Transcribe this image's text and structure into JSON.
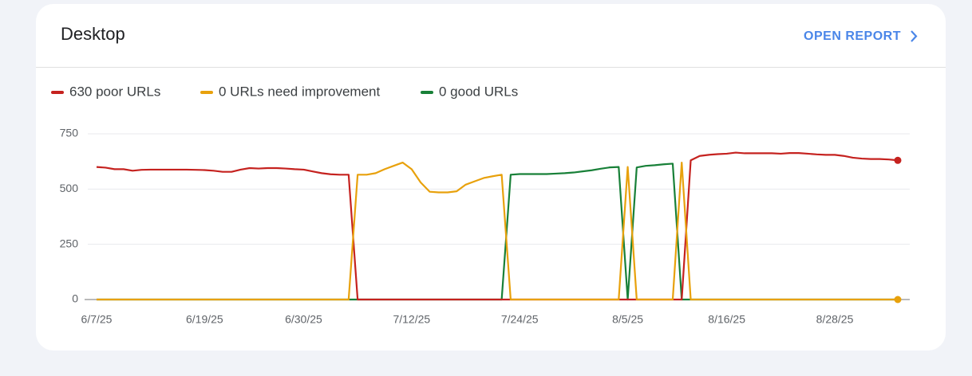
{
  "header": {
    "title": "Desktop",
    "link": "OPEN REPORT"
  },
  "chart_data": {
    "type": "line",
    "categories": [
      "6/7/25",
      null,
      null,
      null,
      null,
      null,
      null,
      null,
      null,
      null,
      null,
      null,
      "6/19/25",
      null,
      null,
      null,
      null,
      null,
      null,
      null,
      null,
      null,
      null,
      "6/30/25",
      null,
      null,
      null,
      null,
      null,
      null,
      null,
      null,
      null,
      null,
      null,
      "7/12/25",
      null,
      null,
      null,
      null,
      null,
      null,
      null,
      null,
      null,
      null,
      null,
      "7/24/25",
      null,
      null,
      null,
      null,
      null,
      null,
      null,
      null,
      null,
      null,
      null,
      "8/5/25",
      null,
      null,
      null,
      null,
      null,
      null,
      null,
      null,
      null,
      null,
      "8/16/25",
      null,
      null,
      null,
      null,
      null,
      null,
      null,
      null,
      null,
      null,
      null,
      "8/28/25",
      null,
      null,
      null,
      null,
      null,
      null,
      null
    ],
    "series": [
      {
        "name": "0 good URLs",
        "color": "#188038",
        "values": [
          0,
          0,
          0,
          0,
          0,
          0,
          0,
          0,
          0,
          0,
          0,
          0,
          0,
          0,
          0,
          0,
          0,
          0,
          0,
          0,
          0,
          0,
          0,
          0,
          0,
          0,
          0,
          0,
          0,
          0,
          0,
          0,
          0,
          0,
          0,
          0,
          0,
          0,
          0,
          0,
          0,
          0,
          0,
          0,
          0,
          0,
          565,
          568,
          568,
          568,
          568,
          570,
          572,
          575,
          580,
          585,
          592,
          598,
          600,
          0,
          598,
          605,
          608,
          612,
          615,
          0,
          0,
          0,
          0,
          0,
          0,
          0,
          0,
          0,
          0,
          0,
          0,
          0,
          0,
          0,
          0,
          0,
          0,
          0,
          0,
          0,
          0,
          0,
          0,
          0
        ]
      },
      {
        "name": "630 poor URLs",
        "color": "#c5221f",
        "values": [
          600,
          597,
          590,
          590,
          583,
          587,
          588,
          588,
          588,
          588,
          588,
          587,
          586,
          583,
          578,
          578,
          588,
          595,
          593,
          595,
          595,
          593,
          590,
          588,
          580,
          572,
          567,
          565,
          565,
          0,
          0,
          0,
          0,
          0,
          0,
          0,
          0,
          0,
          0,
          0,
          0,
          0,
          0,
          0,
          0,
          0,
          0,
          0,
          0,
          0,
          0,
          0,
          0,
          0,
          0,
          0,
          0,
          0,
          0,
          0,
          0,
          0,
          0,
          0,
          0,
          0,
          630,
          650,
          655,
          658,
          660,
          665,
          662,
          662,
          662,
          662,
          660,
          663,
          663,
          660,
          657,
          655,
          655,
          650,
          642,
          638,
          636,
          636,
          634,
          630
        ]
      },
      {
        "name": "0 URLs need improvement",
        "color": "#e8a10c",
        "values": [
          0,
          0,
          0,
          0,
          0,
          0,
          0,
          0,
          0,
          0,
          0,
          0,
          0,
          0,
          0,
          0,
          0,
          0,
          0,
          0,
          0,
          0,
          0,
          0,
          0,
          0,
          0,
          0,
          0,
          565,
          565,
          572,
          590,
          605,
          620,
          590,
          530,
          488,
          485,
          485,
          490,
          520,
          535,
          550,
          558,
          565,
          0,
          0,
          0,
          0,
          0,
          0,
          0,
          0,
          0,
          0,
          0,
          0,
          0,
          600,
          0,
          0,
          0,
          0,
          0,
          620,
          0,
          0,
          0,
          0,
          0,
          0,
          0,
          0,
          0,
          0,
          0,
          0,
          0,
          0,
          0,
          0,
          0,
          0,
          0,
          0,
          0,
          0,
          0,
          0
        ]
      }
    ],
    "legend_order": [
      1,
      2,
      0
    ],
    "ylim": [
      0,
      750
    ],
    "yticks": [
      0,
      250,
      500,
      750
    ],
    "grid": true
  }
}
